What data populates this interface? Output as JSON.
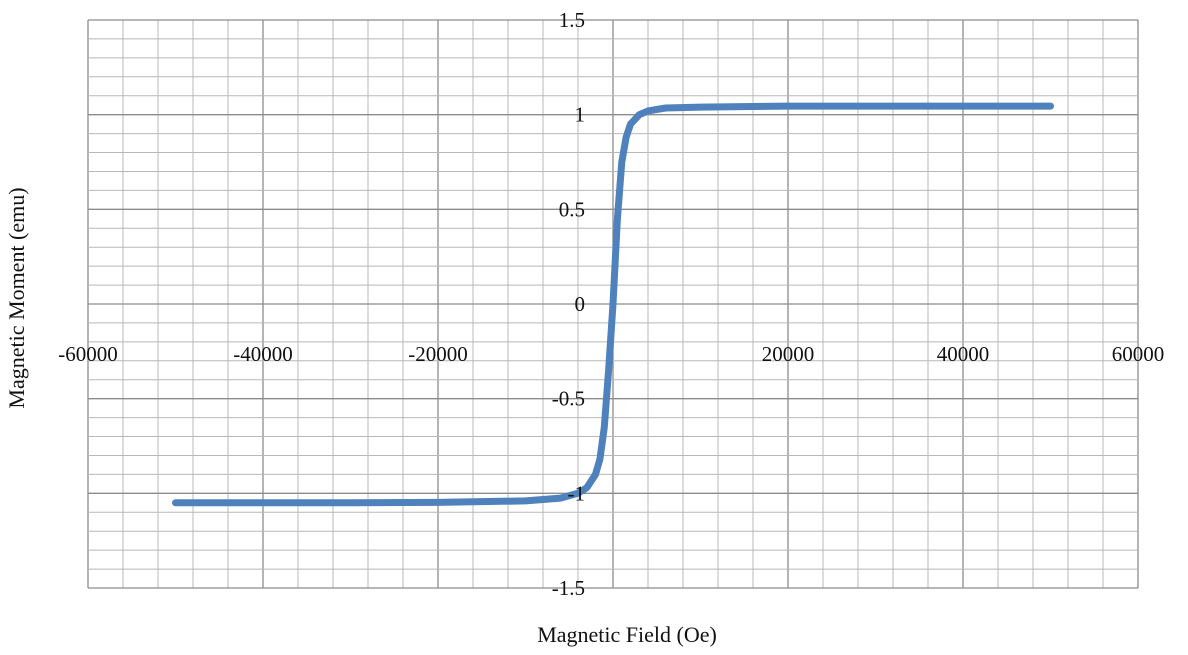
{
  "chart_data": {
    "type": "line",
    "title": "",
    "xlabel": "Magnetic Field (Oe)",
    "ylabel": "Magnetic Moment (emu)",
    "xlim": [
      -60000,
      60000
    ],
    "ylim": [
      -1.5,
      1.5
    ],
    "x_ticks": [
      "-60000",
      "-40000",
      "-20000",
      "0",
      "20000",
      "40000",
      "60000"
    ],
    "y_ticks": [
      "1.5",
      "1",
      "0.5",
      "0",
      "-0.5",
      "-1",
      "-1.5"
    ],
    "grid": true,
    "legend": "none",
    "series": [
      {
        "color": "#4f81bd",
        "x": [
          -50000,
          -40000,
          -30000,
          -20000,
          -10000,
          -6000,
          -4000,
          -3000,
          -2000,
          -1500,
          -1000,
          -500,
          0,
          500,
          1000,
          1500,
          2000,
          3000,
          4000,
          6000,
          10000,
          20000,
          30000,
          40000,
          50000
        ],
        "y": [
          -1.05,
          -1.05,
          -1.05,
          -1.048,
          -1.04,
          -1.025,
          -1.0,
          -0.97,
          -0.9,
          -0.82,
          -0.65,
          -0.35,
          0.0,
          0.45,
          0.75,
          0.88,
          0.95,
          1.0,
          1.02,
          1.035,
          1.04,
          1.045,
          1.045,
          1.045,
          1.045
        ]
      }
    ]
  }
}
